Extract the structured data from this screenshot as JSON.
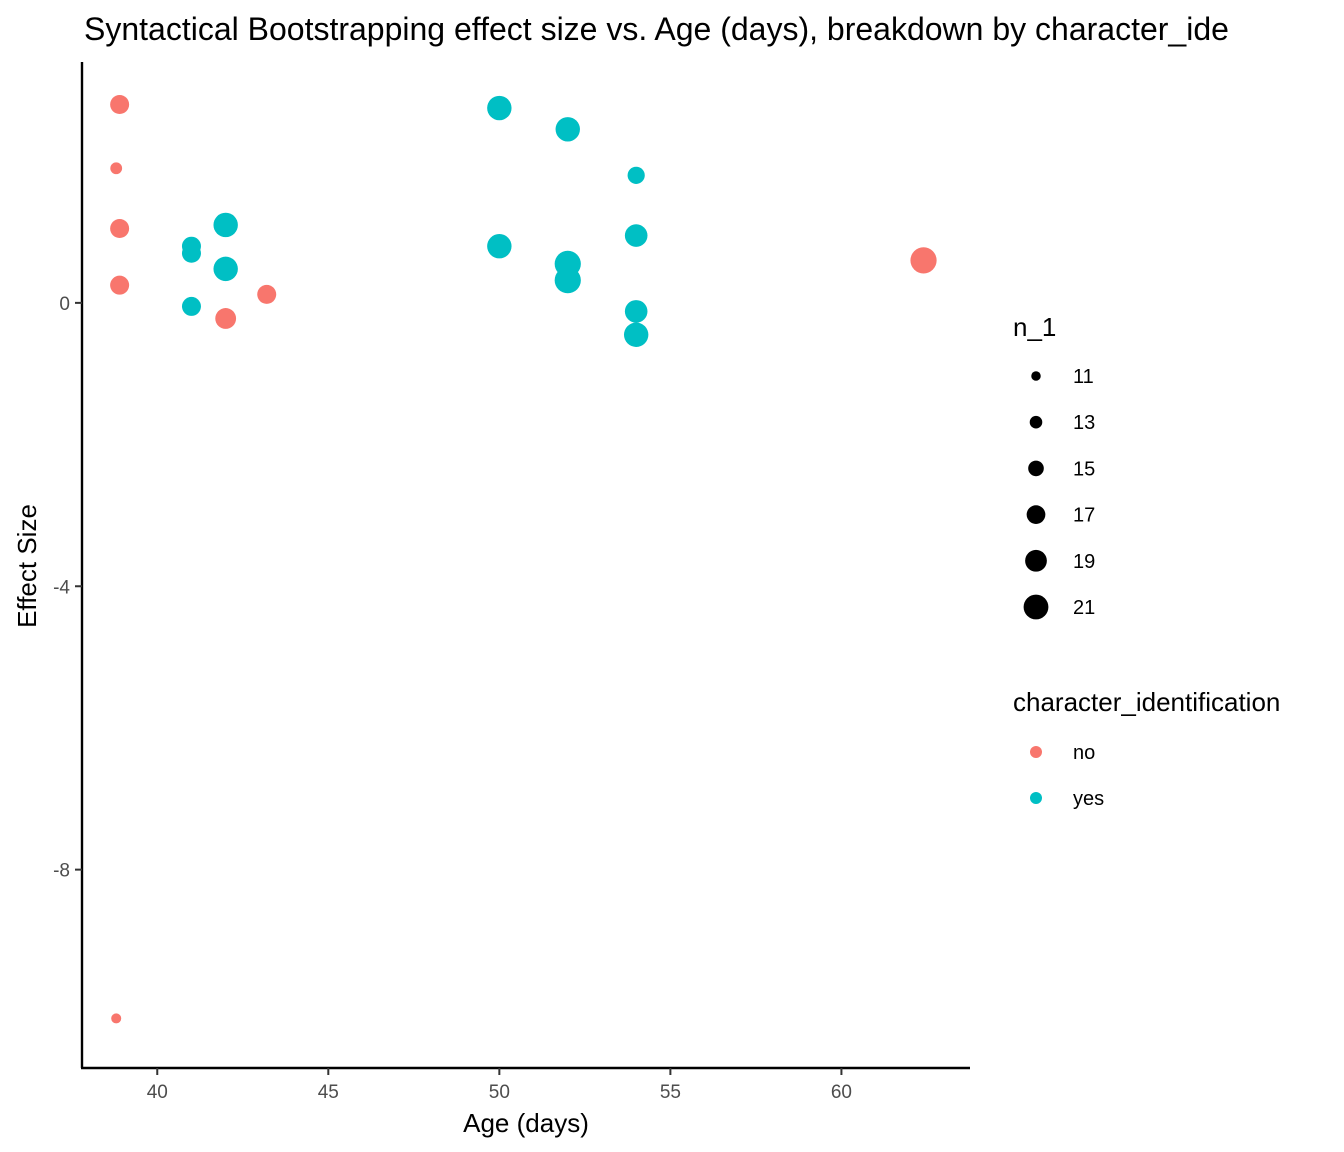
{
  "chart_data": {
    "type": "scatter",
    "title": "Syntactical Bootstrapping effect size vs. Age (days), breakdown by character_ide",
    "xlabel": "Age (days)",
    "ylabel": "Effect Size",
    "xlim": [
      37.8,
      63.7
    ],
    "ylim": [
      -10.8,
      3.4
    ],
    "x_ticks": [
      40,
      45,
      50,
      55,
      60
    ],
    "y_ticks": [
      0,
      -4,
      -8
    ],
    "grid": false,
    "size_legend": {
      "title": "n_1",
      "values": [
        11,
        13,
        15,
        17,
        19,
        21
      ]
    },
    "color_legend": {
      "title": "character_identification",
      "entries": [
        {
          "label": "no",
          "color": "#F8766D"
        },
        {
          "label": "yes",
          "color": "#00BFC4"
        }
      ]
    },
    "legend_position": "right",
    "series": [
      {
        "name": "no",
        "color": "#F8766D",
        "points": [
          {
            "x": 38.9,
            "y": 2.8,
            "n_1": 16
          },
          {
            "x": 38.8,
            "y": 1.9,
            "n_1": 12
          },
          {
            "x": 38.9,
            "y": 1.05,
            "n_1": 16
          },
          {
            "x": 38.9,
            "y": 0.25,
            "n_1": 16
          },
          {
            "x": 42.0,
            "y": -0.22,
            "n_1": 17
          },
          {
            "x": 43.2,
            "y": 0.12,
            "n_1": 16
          },
          {
            "x": 62.4,
            "y": 0.6,
            "n_1": 20
          },
          {
            "x": 38.8,
            "y": -10.1,
            "n_1": 11
          }
        ]
      },
      {
        "name": "yes",
        "color": "#00BFC4",
        "points": [
          {
            "x": 41.0,
            "y": 0.8,
            "n_1": 16
          },
          {
            "x": 41.0,
            "y": 0.7,
            "n_1": 16
          },
          {
            "x": 42.0,
            "y": 1.1,
            "n_1": 19
          },
          {
            "x": 42.0,
            "y": 0.48,
            "n_1": 19
          },
          {
            "x": 41.0,
            "y": -0.05,
            "n_1": 16
          },
          {
            "x": 50.0,
            "y": 2.75,
            "n_1": 19
          },
          {
            "x": 50.0,
            "y": 0.8,
            "n_1": 19
          },
          {
            "x": 52.0,
            "y": 2.45,
            "n_1": 19
          },
          {
            "x": 52.0,
            "y": 0.55,
            "n_1": 20
          },
          {
            "x": 52.0,
            "y": 0.32,
            "n_1": 20
          },
          {
            "x": 54.0,
            "y": 1.8,
            "n_1": 15
          },
          {
            "x": 54.0,
            "y": 0.95,
            "n_1": 18
          },
          {
            "x": 54.0,
            "y": -0.12,
            "n_1": 18
          },
          {
            "x": 54.0,
            "y": -0.45,
            "n_1": 19
          }
        ]
      }
    ]
  }
}
